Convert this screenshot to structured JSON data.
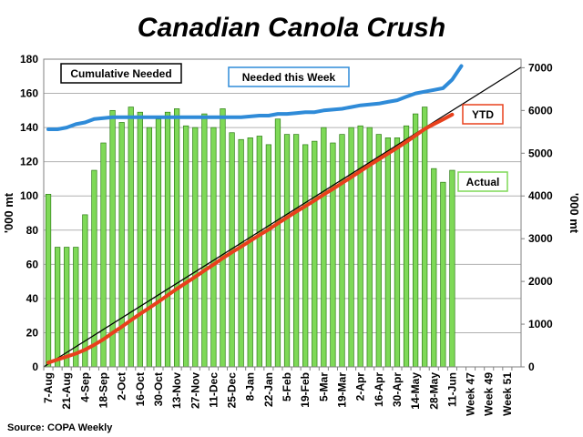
{
  "chart_data": {
    "type": "bar",
    "title": "Canadian Canola Crush",
    "source": "Source: COPA Weekly",
    "ylabel_left": "'000 mt",
    "ylabel_right": "'000 mt",
    "ylim_left": [
      0,
      180
    ],
    "yticks_left": [
      "0",
      "20",
      "40",
      "60",
      "80",
      "100",
      "120",
      "140",
      "160",
      "180"
    ],
    "ylim_right": [
      0,
      7200
    ],
    "yticks_right": [
      "0",
      "1000",
      "2000",
      "3000",
      "4000",
      "5000",
      "6000",
      "7000"
    ],
    "grid": true,
    "categories": [
      "7-Aug",
      "",
      "21-Aug",
      "",
      "4-Sep",
      "",
      "18-Sep",
      "",
      "2-Oct",
      "",
      "16-Oct",
      "",
      "30-Oct",
      "",
      "13-Nov",
      "",
      "27-Nov",
      "",
      "11-Dec",
      "",
      "25-Dec",
      "",
      "8-Jan",
      "",
      "22-Jan",
      "",
      "5-Feb",
      "",
      "19-Feb",
      "",
      "5-Mar",
      "",
      "19-Mar",
      "",
      "2-Apr",
      "",
      "16-Apr",
      "",
      "30-Apr",
      "",
      "14-May",
      "",
      "28-May",
      "",
      "11-Jun",
      "",
      "Week 47",
      "",
      "Week 49",
      "",
      "Week 51",
      ""
    ],
    "series": [
      {
        "name": "Actual",
        "axis": "left",
        "color": "#7ed957",
        "values": [
          101,
          70,
          70,
          70,
          89,
          115,
          131,
          150,
          143,
          152,
          149,
          140,
          145,
          149,
          151,
          141,
          140,
          148,
          140,
          151,
          137,
          133,
          134,
          135,
          130,
          145,
          136,
          136,
          130,
          132,
          140,
          131,
          136,
          140,
          141,
          140,
          136,
          134,
          134,
          141,
          148,
          152,
          116,
          108,
          115,
          null,
          null,
          null,
          null,
          null,
          null,
          null
        ]
      },
      {
        "name": "Needed this Week",
        "axis": "left",
        "color": "#2f8bd8",
        "values": [
          139,
          139,
          140,
          142,
          143,
          145,
          145.5,
          146,
          146,
          146,
          146,
          146,
          146,
          146,
          146,
          146,
          146,
          146,
          146,
          146,
          146,
          146,
          146.5,
          147,
          147,
          148,
          148,
          148.5,
          149,
          149,
          150,
          150.5,
          151,
          152,
          153,
          153.5,
          154,
          155,
          156,
          158,
          160,
          161,
          162,
          163,
          168,
          176,
          null,
          null,
          null,
          null,
          null,
          null
        ]
      },
      {
        "name": "YTD",
        "axis": "right",
        "color": "#e8401c",
        "values": [
          101,
          171,
          241,
          311,
          400,
          515,
          646,
          796,
          939,
          1091,
          1240,
          1380,
          1525,
          1674,
          1825,
          1966,
          2106,
          2254,
          2394,
          2545,
          2682,
          2815,
          2949,
          3084,
          3214,
          3359,
          3495,
          3631,
          3761,
          3893,
          4033,
          4164,
          4300,
          4440,
          4581,
          4721,
          4857,
          4991,
          5125,
          5266,
          5414,
          5566,
          5682,
          5790,
          5905,
          null,
          null,
          null,
          null,
          null,
          null,
          null
        ]
      },
      {
        "name": "Cumulative Needed",
        "axis": "right",
        "color": "#000000",
        "type": "line",
        "x_range": [
          0,
          51
        ],
        "y_range": [
          0,
          7010
        ]
      }
    ],
    "legend": [
      {
        "label": "Cumulative Needed",
        "border": "#000000"
      },
      {
        "label": "Needed this Week",
        "border": "#2f8bd8"
      },
      {
        "label": "YTD",
        "border": "#e8401c"
      },
      {
        "label": "Actual",
        "border": "#7ed957"
      }
    ],
    "plot_bg": "#ffffff",
    "grid_color": "#b0b0b0"
  }
}
